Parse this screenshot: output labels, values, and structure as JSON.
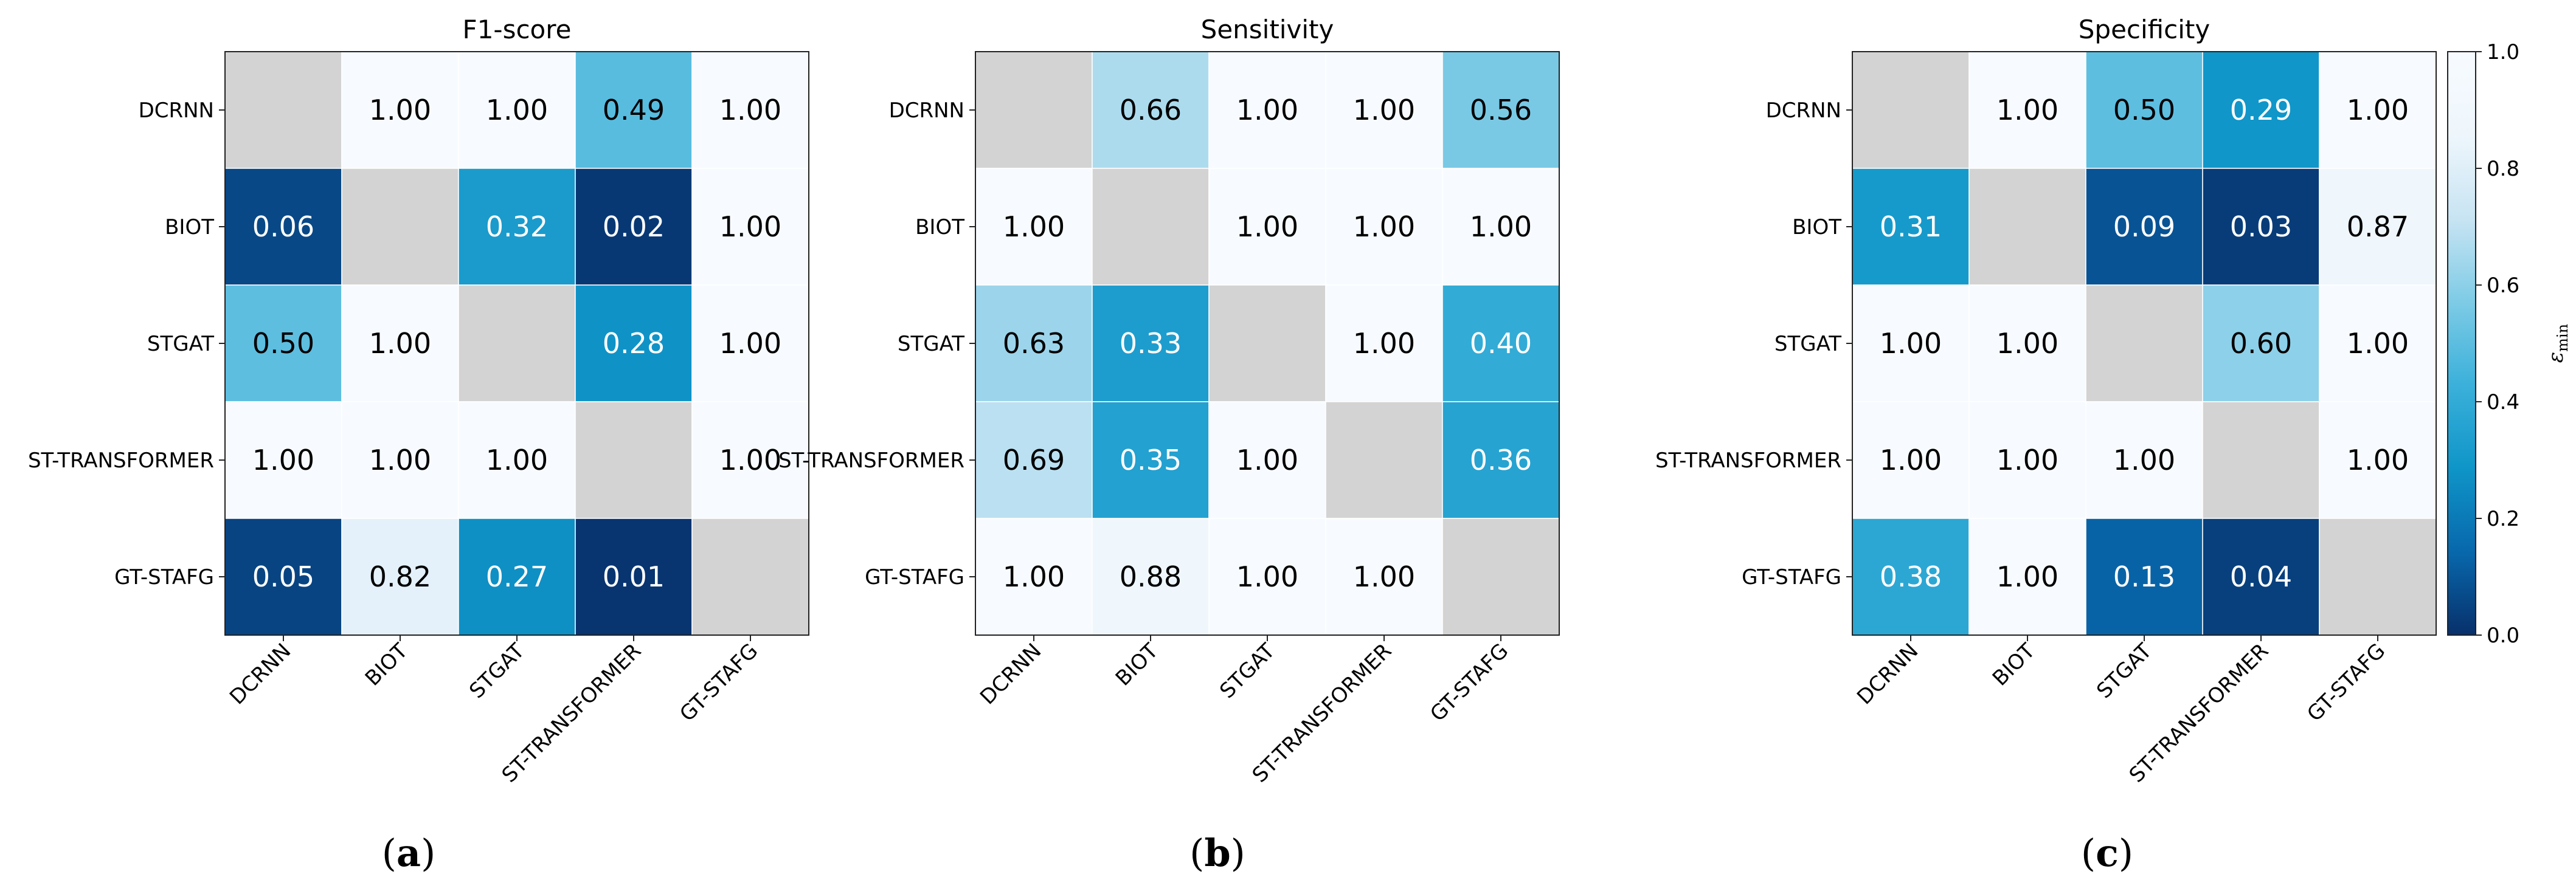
{
  "chart_data": {
    "type": "heatmap",
    "models": [
      "DCRNN",
      "BIOT",
      "STGAT",
      "ST-TRANSFORMER",
      "GT-STAFG"
    ],
    "colorbar": {
      "label_symbol": "ε",
      "label_sub": "min",
      "range": [
        0.0,
        1.0
      ],
      "ticks": [
        "0.0",
        "0.2",
        "0.4",
        "0.6",
        "0.8",
        "1.0"
      ],
      "colormap_stops": [
        "#08306b",
        "#0868ac",
        "#0f95c8",
        "#3bb0da",
        "#7ecbe6",
        "#c8e4f3",
        "#eef6fc",
        "#f7fbff"
      ]
    },
    "missing_color": "#d3d3d3",
    "panels": [
      {
        "title": "F1-score",
        "caption_open": "(",
        "caption_letter": "a",
        "caption_close": ")",
        "values": [
          [
            null,
            1.0,
            1.0,
            0.49,
            1.0
          ],
          [
            0.06,
            null,
            0.32,
            0.02,
            1.0
          ],
          [
            0.5,
            1.0,
            null,
            0.28,
            1.0
          ],
          [
            1.0,
            1.0,
            1.0,
            null,
            1.0
          ],
          [
            0.05,
            0.82,
            0.27,
            0.01,
            null
          ]
        ]
      },
      {
        "title": "Sensitivity",
        "caption_open": "(",
        "caption_letter": "b",
        "caption_close": ")",
        "values": [
          [
            null,
            0.66,
            1.0,
            1.0,
            0.56
          ],
          [
            1.0,
            null,
            1.0,
            1.0,
            1.0
          ],
          [
            0.63,
            0.33,
            null,
            1.0,
            0.4
          ],
          [
            0.69,
            0.35,
            1.0,
            null,
            0.36
          ],
          [
            1.0,
            0.88,
            1.0,
            1.0,
            null
          ]
        ]
      },
      {
        "title": "Specificity",
        "caption_open": "(",
        "caption_letter": "c",
        "caption_close": ")",
        "values": [
          [
            null,
            1.0,
            0.5,
            0.29,
            1.0
          ],
          [
            0.31,
            null,
            0.09,
            0.03,
            0.87
          ],
          [
            1.0,
            1.0,
            null,
            0.6,
            1.0
          ],
          [
            1.0,
            1.0,
            1.0,
            null,
            1.0
          ],
          [
            0.38,
            1.0,
            0.13,
            0.04,
            null
          ]
        ]
      }
    ]
  }
}
